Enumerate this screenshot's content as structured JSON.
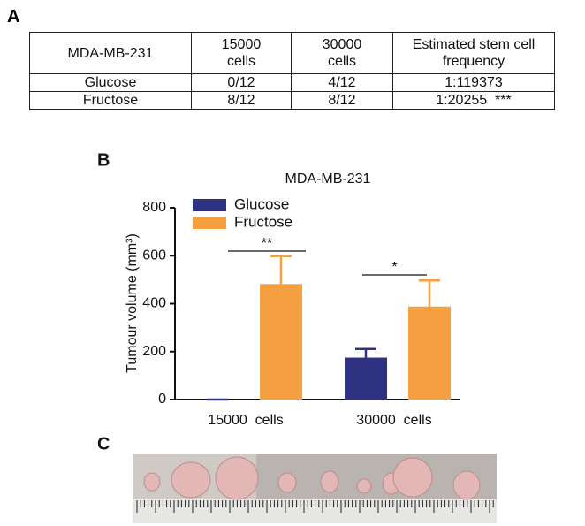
{
  "panels": [
    "A",
    "B",
    "C"
  ],
  "table": {
    "header": [
      "MDA-MB-231",
      "15000\ncells",
      "30000\ncells",
      "Estimated stem cell\nfrequency"
    ],
    "rows": [
      [
        "Glucose",
        "0/12",
        "4/12",
        "1:119373"
      ],
      [
        "Fructose",
        "8/12",
        "8/12",
        "1:20255  ***"
      ]
    ]
  },
  "chart_data": {
    "type": "bar",
    "title": "MDA-MB-231",
    "y_label": "Tumour volume (mm³)",
    "categories": [
      "15000  cells",
      "30000  cells"
    ],
    "series": [
      {
        "name": "Glucose",
        "color": "#2e3281",
        "values": [
          0,
          175
        ],
        "errors": [
          0,
          36
        ]
      },
      {
        "name": "Fructose",
        "color": "#f5a040",
        "values": [
          482,
          388
        ],
        "errors": [
          116,
          109
        ]
      }
    ],
    "ylim": [
      0,
      800
    ],
    "yticks": [
      0,
      200,
      400,
      600,
      800
    ],
    "legend": "upper-left",
    "annotations": [
      "**",
      "*"
    ]
  }
}
